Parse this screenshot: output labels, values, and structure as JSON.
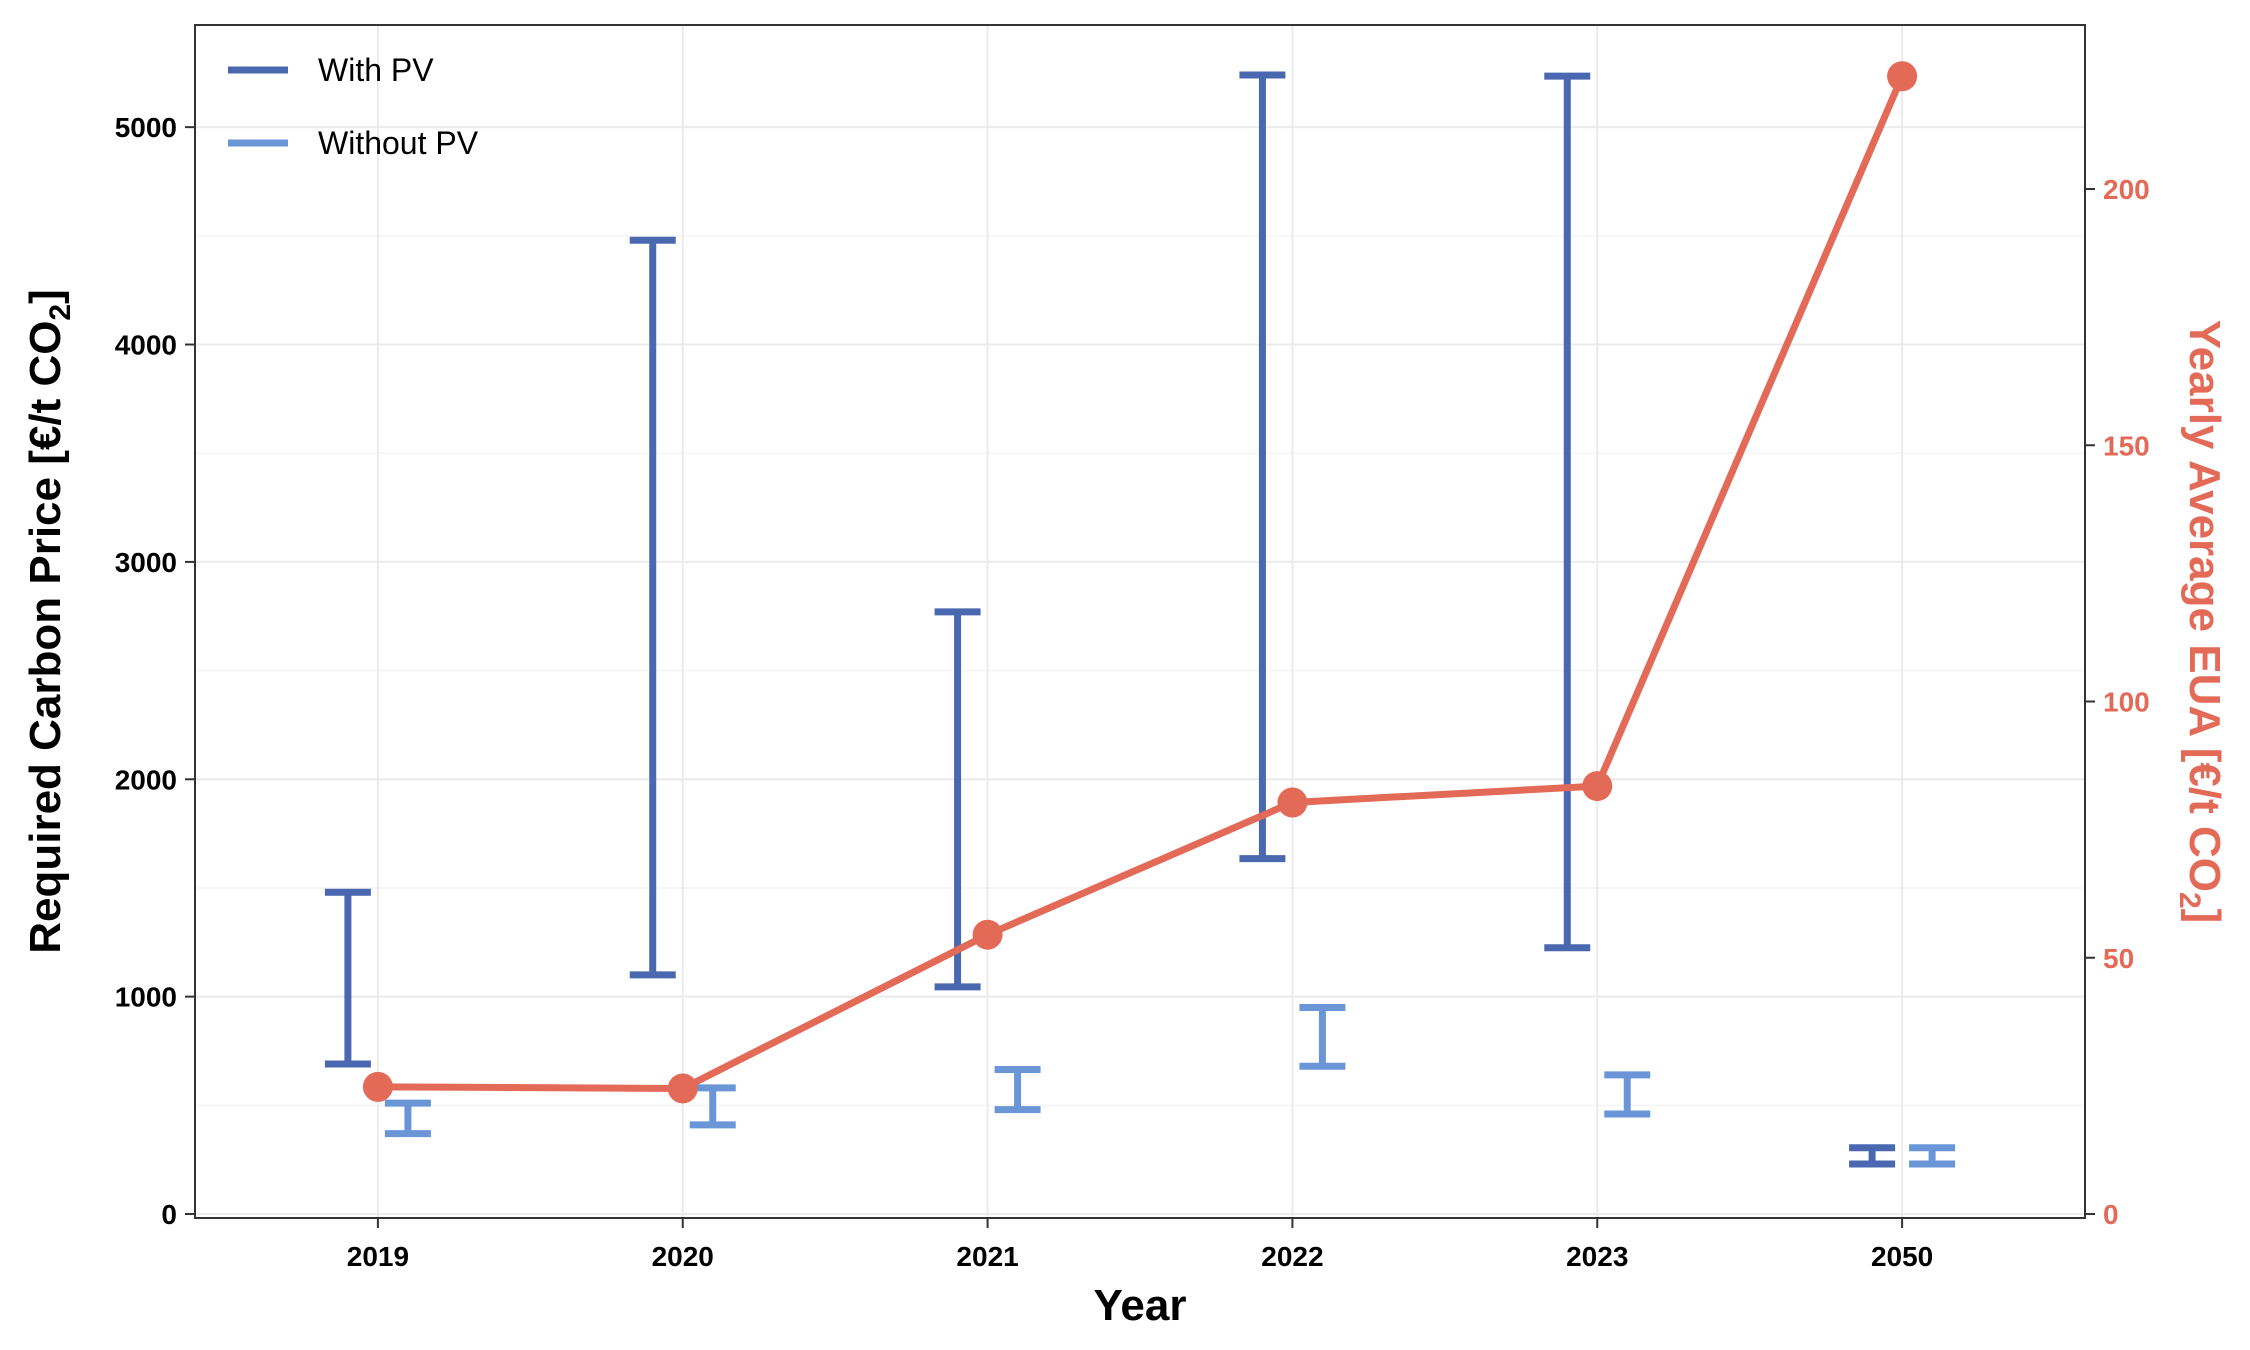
{
  "chart_data": {
    "type": "line",
    "categories": [
      "2019",
      "2020",
      "2021",
      "2022",
      "2023",
      "2050"
    ],
    "xlabel": "Year",
    "ylabel": {
      "main": "Required Carbon Price [€/t CO",
      "sub": "2",
      "end": "]"
    },
    "y2label": {
      "main": "Yearly Average EUA [€/t CO",
      "sub": "2",
      "end": "]"
    },
    "ylim": [
      0,
      5470
    ],
    "y2lim": [
      0,
      232
    ],
    "yticks": [
      "0",
      "1000",
      "2000",
      "3000",
      "4000",
      "5000"
    ],
    "y2ticks": [
      "0",
      "50",
      "100",
      "150",
      "200"
    ],
    "grid": true,
    "legend_position": "top-left",
    "colors": {
      "with_pv": "#4a68b0",
      "without_pv": "#6a96d8",
      "eua": "#e46a58",
      "axis": "#333333"
    },
    "series": [
      {
        "name": "With PV",
        "kind": "errorbar",
        "axis": "left",
        "low": [
          690,
          1100,
          1045,
          1635,
          1225,
          230
        ],
        "high": [
          1480,
          4480,
          2770,
          5240,
          5235,
          305
        ]
      },
      {
        "name": "Without PV",
        "kind": "errorbar",
        "axis": "left",
        "low": [
          370,
          410,
          480,
          680,
          460,
          230
        ],
        "high": [
          510,
          580,
          665,
          950,
          640,
          305
        ]
      },
      {
        "kind": "line",
        "axis": "right",
        "values": [
          24.8,
          24.5,
          54.5,
          80.3,
          83.5,
          222
        ]
      }
    ]
  }
}
